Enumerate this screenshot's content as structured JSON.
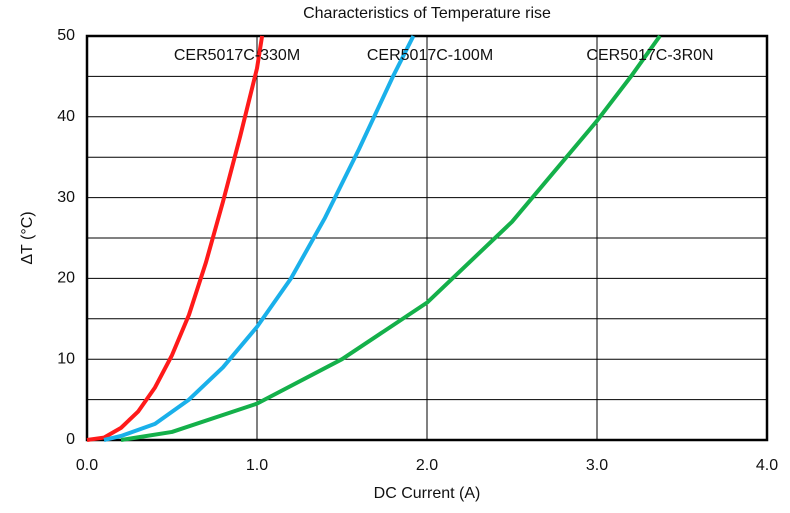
{
  "chart_data": {
    "type": "line",
    "title": "Characteristics of Temperature rise",
    "x_label": "DC Current (A)",
    "y_label": "ΔT (°C)",
    "series": [
      {
        "name": "CER5017C-330M",
        "color": "#ff1a1a",
        "x": [
          0,
          0.1,
          0.2,
          0.3,
          0.4,
          0.5,
          0.6,
          0.7,
          0.8,
          0.9,
          1.0,
          1.03
        ],
        "values": [
          0,
          0.3,
          1.5,
          3.5,
          6.5,
          10.5,
          15.5,
          22,
          29.5,
          37.5,
          46,
          50
        ]
      },
      {
        "name": "CER5017C-100M",
        "color": "#1ab0ea",
        "x": [
          0.1,
          0.2,
          0.4,
          0.6,
          0.8,
          1.0,
          1.2,
          1.4,
          1.6,
          1.8,
          1.92
        ],
        "values": [
          0,
          0.5,
          2,
          5,
          9,
          14,
          20,
          27.5,
          36,
          45,
          50
        ]
      },
      {
        "name": "CER5017C-3R0N",
        "color": "#14b04a",
        "x": [
          0.2,
          0.5,
          1.0,
          1.5,
          2.0,
          2.5,
          3.0,
          3.2,
          3.37
        ],
        "values": [
          0,
          1,
          4.5,
          10,
          17,
          27,
          39.5,
          45,
          50
        ]
      }
    ],
    "xlim": [
      0,
      4
    ],
    "xticks": [
      {
        "value": 0,
        "label": "0.0"
      },
      {
        "value": 1,
        "label": "1.0"
      },
      {
        "value": 2,
        "label": "2.0"
      },
      {
        "value": 3,
        "label": "3.0"
      },
      {
        "value": 4,
        "label": "4.0"
      }
    ],
    "ylim": [
      0,
      50
    ],
    "yticks": [
      0,
      10,
      20,
      30,
      40,
      50
    ],
    "y_minor_grid": [
      5,
      15,
      25,
      35,
      45
    ],
    "grid": true
  }
}
